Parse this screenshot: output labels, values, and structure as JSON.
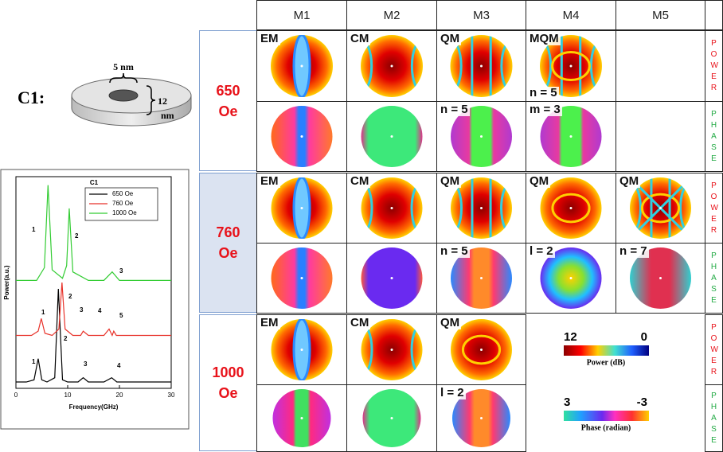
{
  "figure_label": "C1:",
  "diagram": {
    "top_label": "5 nm",
    "side_label_top": "12",
    "side_label_bottom": "nm"
  },
  "chart_data": {
    "type": "line",
    "title": "C1",
    "x_label": "Frequency(GHz)",
    "y_label": "Power(a.u.)",
    "xlim": [
      0,
      30
    ],
    "xticks": [
      0,
      10,
      20,
      30
    ],
    "ylim": [
      0,
      100
    ],
    "legend_position": "upper right",
    "series": [
      {
        "name": "650 Oe",
        "color": "#000000",
        "x": [
          0,
          2,
          3.5,
          4.3,
          5,
          6,
          7.5,
          8.2,
          9,
          10,
          12,
          13,
          14,
          17,
          18.5,
          19.5,
          22,
          26,
          30
        ],
        "values": [
          3,
          3,
          4,
          14,
          4,
          3,
          5,
          47,
          4,
          3,
          3,
          5,
          3,
          3,
          5,
          3,
          3,
          3,
          3
        ],
        "peak_labels": [
          "1",
          "2",
          "3",
          "4"
        ]
      },
      {
        "name": "760 Oe",
        "color": "#e8322a",
        "x": [
          0,
          3,
          4.3,
          4.9,
          5.6,
          7,
          8.3,
          8.9,
          9.5,
          11,
          12.5,
          13,
          14,
          17,
          18,
          18.6,
          18.9,
          19.4,
          22,
          26,
          30
        ],
        "values": [
          25,
          25,
          27,
          33,
          26,
          25,
          28,
          50,
          28,
          25,
          25,
          27,
          25,
          25,
          28,
          25,
          27,
          25,
          25,
          25,
          25
        ],
        "peak_labels": [
          "1",
          "2",
          "3",
          "4",
          "5"
        ]
      },
      {
        "name": "1000 Oe",
        "color": "#33cc33",
        "x": [
          0,
          4,
          5.5,
          6.2,
          7,
          9,
          9.8,
          10.3,
          11,
          14,
          17,
          18.6,
          20,
          24,
          30
        ],
        "values": [
          51,
          51,
          57,
          96,
          56,
          52,
          58,
          85,
          55,
          51,
          51,
          55,
          51,
          51,
          51
        ],
        "peak_labels": [
          "1",
          "2",
          "3"
        ]
      }
    ]
  },
  "table": {
    "columns": [
      "M1",
      "M2",
      "M3",
      "M4",
      "M5"
    ],
    "rows": [
      {
        "field": "650 Oe",
        "power": {
          "side": "POWER",
          "cells": [
            {
              "top": "EM"
            },
            {
              "top": "CM"
            },
            {
              "top": "QM"
            },
            {
              "top": "MQM",
              "bottom": "n = 5"
            },
            null
          ]
        },
        "phase": {
          "side": "PHASE",
          "cells": [
            {},
            {},
            {
              "top": "n = 5"
            },
            {
              "top": "m = 3"
            },
            null
          ]
        }
      },
      {
        "field": "760 Oe",
        "power": {
          "side": "POWER",
          "cells": [
            {
              "top": "EM"
            },
            {
              "top": "CM"
            },
            {
              "top": "QM"
            },
            {
              "top": "QM"
            },
            {
              "top": "QM"
            }
          ]
        },
        "phase": {
          "side": "PHASE",
          "cells": [
            {},
            {},
            {
              "top": "n = 5"
            },
            {
              "top": "l = 2"
            },
            {
              "top": "n = 7"
            }
          ]
        }
      },
      {
        "field": "1000 Oe",
        "power": {
          "side": "POWER",
          "cells": [
            {
              "top": "EM"
            },
            {
              "top": "CM"
            },
            {
              "top": "QM"
            },
            null,
            null
          ]
        },
        "phase": {
          "side": "PHASE",
          "cells": [
            {},
            {},
            {
              "top": "l = 2"
            },
            null,
            null
          ]
        }
      }
    ]
  },
  "colorbars": {
    "power": {
      "max": 12,
      "min": 0,
      "label": "Power (dB)"
    },
    "phase": {
      "max": 3,
      "min": -3,
      "label": "Phase (radian)"
    }
  }
}
